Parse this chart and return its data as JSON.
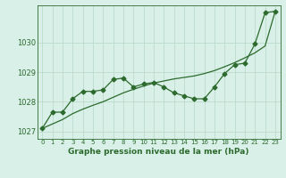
{
  "x": [
    0,
    1,
    2,
    3,
    4,
    5,
    6,
    7,
    8,
    9,
    10,
    11,
    12,
    13,
    14,
    15,
    16,
    17,
    18,
    19,
    20,
    21,
    22,
    23
  ],
  "y_line": [
    1027.1,
    1027.65,
    1027.65,
    1028.1,
    1028.35,
    1028.35,
    1028.4,
    1028.75,
    1028.8,
    1028.5,
    1028.6,
    1028.65,
    1028.5,
    1028.3,
    1028.2,
    1028.1,
    1028.1,
    1028.5,
    1028.95,
    1029.25,
    1029.3,
    1029.95,
    1031.0,
    1031.05
  ],
  "y_trend": [
    1027.1,
    1027.25,
    1027.4,
    1027.6,
    1027.75,
    1027.88,
    1028.0,
    1028.15,
    1028.3,
    1028.42,
    1028.53,
    1028.63,
    1028.7,
    1028.77,
    1028.82,
    1028.87,
    1028.95,
    1029.05,
    1029.18,
    1029.32,
    1029.48,
    1029.65,
    1029.88,
    1031.05
  ],
  "line_color": "#2d6a2d",
  "bg_color": "#d8f0e8",
  "grid_color": "#b8d8c8",
  "xlabel": "Graphe pression niveau de la mer (hPa)",
  "ylim": [
    1026.75,
    1031.25
  ],
  "xlim": [
    -0.5,
    23.5
  ],
  "yticks": [
    1027,
    1028,
    1029,
    1030
  ],
  "xticks": [
    0,
    1,
    2,
    3,
    4,
    5,
    6,
    7,
    8,
    9,
    10,
    11,
    12,
    13,
    14,
    15,
    16,
    17,
    18,
    19,
    20,
    21,
    22,
    23
  ]
}
